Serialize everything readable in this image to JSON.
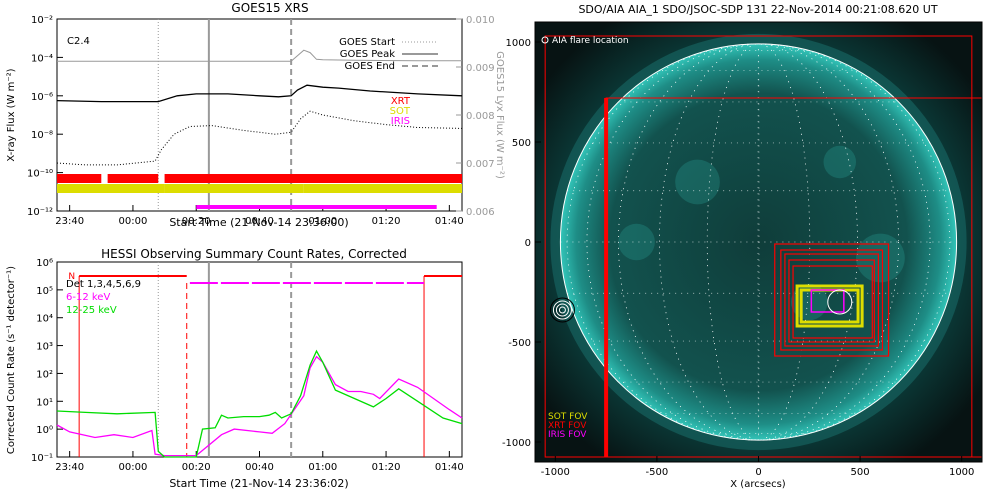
{
  "colors": {
    "xrt": "#ff0000",
    "sot": "#dddd00",
    "iris": "#ff00ff",
    "green": "#00dd00",
    "gray": "#999999"
  },
  "chart_data": [
    {
      "type": "line",
      "title": "GOES15 XRS",
      "xlabel": "Start Time (21-Nov-14 23:36:00)",
      "ylabel": "X-ray Flux (W m⁻²)",
      "y2label": "GOES15 Lyx Flux (W m⁻²)",
      "xticks": [
        "23:40",
        "00:00",
        "00:20",
        "00:40",
        "01:00",
        "01:20",
        "01:40"
      ],
      "yticks": [
        "10⁻²",
        "10⁻⁴",
        "10⁻⁶",
        "10⁻⁸",
        "10⁻¹⁰",
        "10⁻¹²"
      ],
      "y2ticks": [
        "0.010",
        "0.009",
        "0.008",
        "0.007",
        "0.006"
      ],
      "x_range_min": [
        -4,
        124
      ],
      "y_log_range": [
        -12,
        -2
      ],
      "y2_range": [
        0.006,
        0.01
      ],
      "flare_class": "C2.4",
      "legend": [
        {
          "label": "GOES Start",
          "style": "dotted"
        },
        {
          "label": "GOES Peak",
          "style": "solid"
        },
        {
          "label": "GOES End",
          "style": "dashed"
        }
      ],
      "markers_min": {
        "start": 28,
        "peak": 44,
        "end": 70
      },
      "instrument_labels": [
        "XRT",
        "SOT",
        "IRIS"
      ],
      "series": [
        {
          "name": "",
          "style": "solid-black",
          "x": [
            -4,
            10,
            20,
            28,
            34,
            40,
            50,
            60,
            66,
            70,
            72,
            75,
            80,
            85,
            95,
            110,
            124
          ],
          "log_y": [
            -6.25,
            -6.3,
            -6.3,
            -6.3,
            -6.0,
            -5.9,
            -5.9,
            -6.0,
            -6.05,
            -6.0,
            -5.7,
            -5.45,
            -5.55,
            -5.6,
            -5.75,
            -5.9,
            -6.0
          ]
        },
        {
          "name": "",
          "style": "dotted-black",
          "x": [
            -4,
            5,
            15,
            27,
            29,
            33,
            38,
            45,
            55,
            65,
            70,
            73,
            76,
            80,
            90,
            100,
            110,
            124
          ],
          "log_y": [
            -9.5,
            -9.6,
            -9.6,
            -9.4,
            -8.8,
            -8.0,
            -7.6,
            -7.55,
            -7.8,
            -8.0,
            -7.9,
            -7.2,
            -6.8,
            -7.0,
            -7.3,
            -7.5,
            -7.65,
            -7.7
          ]
        },
        {
          "name": "",
          "style": "solid-gray-lyx",
          "x": [
            -4,
            30,
            60,
            70,
            74,
            76,
            78,
            80,
            90,
            110,
            124
          ],
          "y": [
            0.00912,
            0.00912,
            0.00912,
            0.00912,
            0.00935,
            0.0093,
            0.00916,
            0.00915,
            0.00914,
            0.00913,
            0.00913
          ]
        }
      ],
      "coverage_bars": [
        {
          "name": "XRT",
          "segments_min": [
            [
              -4,
              10
            ],
            [
              12,
              28
            ],
            [
              30,
              124
            ]
          ]
        },
        {
          "name": "SOT",
          "segments_min": [
            [
              -4,
              30
            ],
            [
              30,
              74
            ],
            [
              74,
              124
            ]
          ]
        },
        {
          "name": "IRIS",
          "segments_min": [
            [
              40,
              116
            ]
          ]
        }
      ]
    },
    {
      "type": "line",
      "title": "HESSI Observing Summary Count Rates, Corrected",
      "xlabel": "Start Time (21-Nov-14 23:36:02)",
      "ylabel": "Corrected Count Rate (s⁻¹ detector⁻¹)",
      "xticks": [
        "23:40",
        "00:00",
        "00:20",
        "00:40",
        "01:00",
        "01:20",
        "01:40"
      ],
      "yticks": [
        "10⁶",
        "10⁵",
        "10⁴",
        "10³",
        "10²",
        "10¹",
        "10⁰",
        "10⁻¹"
      ],
      "x_range_min": [
        -4,
        124
      ],
      "y_log_range": [
        -1,
        6
      ],
      "legend": [
        {
          "label": "Det 1,3,4,5,6,9",
          "color": "#000000"
        },
        {
          "label": "6-12 keV",
          "color": "#ff00ff"
        },
        {
          "label": "12-25 keV",
          "color": "#00dd00"
        }
      ],
      "night_label": "N",
      "markers_min": {
        "start": 28,
        "peak": 44,
        "end": 70
      },
      "series": [
        {
          "name": "6-12 keV",
          "x": [
            -4,
            0,
            8,
            14,
            20,
            26,
            27,
            30,
            40,
            48,
            52,
            60,
            64,
            68,
            74,
            76,
            78,
            80,
            84,
            88,
            92,
            96,
            98,
            104,
            110,
            120,
            124
          ],
          "log_y": [
            0.15,
            -0.1,
            -0.3,
            -0.2,
            -0.3,
            -0.05,
            -0.9,
            -0.95,
            -0.95,
            -0.2,
            0.0,
            -0.1,
            -0.15,
            0.2,
            1.2,
            2.2,
            2.6,
            2.4,
            1.6,
            1.35,
            1.35,
            1.25,
            1.1,
            1.8,
            1.5,
            0.7,
            0.4
          ]
        },
        {
          "name": "12-25 keV",
          "x": [
            -4,
            5,
            15,
            27,
            28,
            30,
            35,
            40,
            42,
            46,
            48,
            50,
            55,
            60,
            63,
            65,
            67,
            70,
            73,
            76,
            78,
            80,
            84,
            90,
            96,
            100,
            104,
            110,
            118,
            124
          ],
          "log_y": [
            0.65,
            0.6,
            0.55,
            0.6,
            -0.8,
            -1.0,
            -1.0,
            -1.0,
            0.0,
            0.05,
            0.5,
            0.4,
            0.45,
            0.45,
            0.5,
            0.6,
            0.4,
            0.55,
            1.2,
            2.3,
            2.8,
            2.4,
            1.4,
            1.1,
            0.8,
            1.1,
            1.45,
            1.0,
            0.4,
            0.2
          ]
        }
      ],
      "attenuator_states": [
        {
          "x": [
            -4,
            22
          ],
          "level": "low"
        },
        {
          "x": [
            22,
            38
          ],
          "level": "high"
        },
        {
          "x": [
            38,
            112
          ],
          "level": "mid"
        },
        {
          "x": [
            112,
            124
          ],
          "level": "high"
        }
      ]
    },
    {
      "type": "scatter",
      "title": "SDO/AIA AIA_1 SDO/JSOC-SDP 131 22-Nov-2014 00:21:08.620 UT",
      "xlabel": "X (arcsecs)",
      "ylabel": "",
      "xticks": [
        "-1000",
        "-500",
        "0",
        "500",
        "1000"
      ],
      "yticks": [
        "1000",
        "500",
        "0",
        "-500",
        "-1000"
      ],
      "xlim": [
        -1100,
        1100
      ],
      "ylim": [
        -1100,
        1100
      ],
      "annotation": "AIA flare location",
      "solar_radius_arcsec": 975,
      "fov_legend": [
        {
          "label": "SOT FOV",
          "color": "#dddd00"
        },
        {
          "label": "XRT FOV",
          "color": "#ff0000"
        },
        {
          "label": "IRIS FOV",
          "color": "#ff00ff"
        }
      ],
      "xrt_large_fovs": [
        {
          "x0": -1050,
          "y0": -1075,
          "x1": 1050,
          "y1": 1030
        },
        {
          "x0": -750,
          "y0": -1075,
          "x1": 1100,
          "y1": 720
        }
      ],
      "xrt_small_fovs": [
        {
          "x0": 80,
          "y0": -570,
          "x1": 640,
          "y1": -10
        },
        {
          "x0": 110,
          "y0": -540,
          "x1": 610,
          "y1": -40
        },
        {
          "x0": 130,
          "y0": -520,
          "x1": 590,
          "y1": -60
        },
        {
          "x0": 150,
          "y0": -500,
          "x1": 570,
          "y1": -90
        },
        {
          "x0": 170,
          "y0": -480,
          "x1": 560,
          "y1": -120
        }
      ],
      "sot_fovs": [
        {
          "x0": 190,
          "y0": -420,
          "x1": 510,
          "y1": -220
        },
        {
          "x0": 210,
          "y0": -400,
          "x1": 490,
          "y1": -240
        }
      ],
      "iris_fovs": [
        {
          "x0": 260,
          "y0": -350,
          "x1": 420,
          "y1": -240
        }
      ],
      "flare_location": {
        "x": 400,
        "y": -300
      },
      "limb_markers": {
        "x": -965,
        "y": -340
      }
    }
  ]
}
